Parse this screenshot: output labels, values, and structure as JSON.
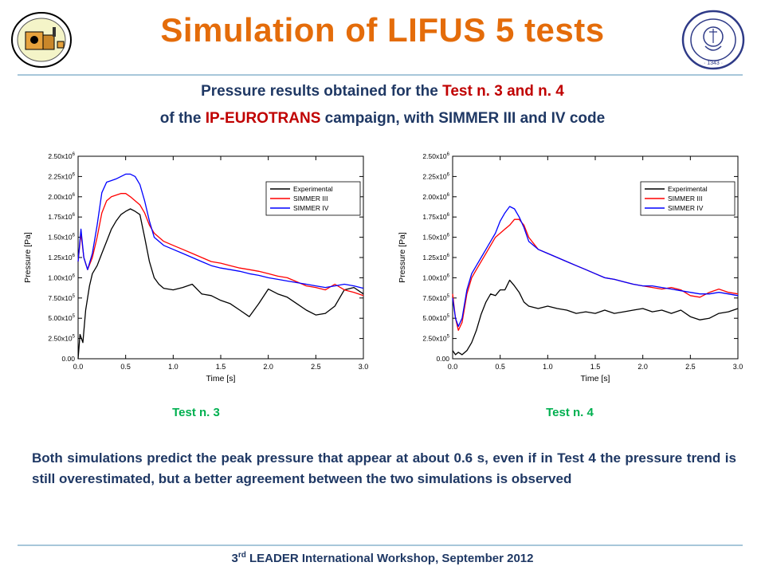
{
  "slide": {
    "title": "Simulation of LIFUS 5 tests",
    "subtitle_line1": {
      "pre": "Pressure results obtained for the ",
      "highlight": "Test n. 3 and n. 4",
      "post": ""
    },
    "subtitle_line2": {
      "pre": "of the ",
      "highlight": "IP-EUROTRANS",
      "post": " campaign, with SIMMER III and IV code"
    },
    "caption_left": "Test n. 3",
    "caption_right": "Test n. 4",
    "body_text": "Both simulations predict the peak pressure that appear at about 0.6 s, even if in Test 4 the pressure trend is still overestimated, but a better agreement between the two simulations is observed",
    "footer": {
      "sup": "rd",
      "pre": "3",
      "post": " LEADER International Workshop, September 2012"
    },
    "seal_text_right": "IN SUPREMÆ DIGNITATIS 1343",
    "accent_color": "#E46C0A",
    "text_color": "#1F3864",
    "highlight_color": "#C00000",
    "caption_color": "#00B050"
  },
  "chart_data": [
    {
      "type": "line",
      "xlabel": "Time [s]",
      "ylabel": "Pressure [Pa]",
      "xlim": [
        0,
        3
      ],
      "ylim": [
        0,
        2500000
      ],
      "x_ticks": [
        "0.0",
        "0.5",
        "1.0",
        "1.5",
        "2.0",
        "2.5",
        "3.0"
      ],
      "y_ticks": [
        {
          "m": "0.00",
          "e": ""
        },
        {
          "m": "2.50x10",
          "e": "5"
        },
        {
          "m": "5.00x10",
          "e": "5"
        },
        {
          "m": "7.50x10",
          "e": "5"
        },
        {
          "m": "1.00x10",
          "e": "6"
        },
        {
          "m": "1.25x10",
          "e": "6"
        },
        {
          "m": "1.50x10",
          "e": "6"
        },
        {
          "m": "1.75x10",
          "e": "6"
        },
        {
          "m": "2.00x10",
          "e": "6"
        },
        {
          "m": "2.25x10",
          "e": "6"
        },
        {
          "m": "2.50x10",
          "e": "6"
        }
      ],
      "legend_position": "top-right",
      "series": [
        {
          "name": "Experimental",
          "color": "#000000",
          "x": [
            0,
            0.02,
            0.05,
            0.08,
            0.12,
            0.15,
            0.2,
            0.25,
            0.3,
            0.35,
            0.4,
            0.45,
            0.5,
            0.55,
            0.6,
            0.65,
            0.7,
            0.75,
            0.8,
            0.85,
            0.9,
            1.0,
            1.1,
            1.2,
            1.3,
            1.4,
            1.5,
            1.6,
            1.7,
            1.8,
            1.9,
            2.0,
            2.1,
            2.2,
            2.3,
            2.4,
            2.5,
            2.6,
            2.7,
            2.8,
            2.9,
            3.0
          ],
          "y": [
            0,
            300000,
            200000,
            600000,
            900000,
            1050000,
            1150000,
            1300000,
            1450000,
            1600000,
            1700000,
            1780000,
            1820000,
            1850000,
            1820000,
            1780000,
            1500000,
            1200000,
            1000000,
            920000,
            870000,
            850000,
            880000,
            920000,
            800000,
            780000,
            720000,
            680000,
            600000,
            520000,
            680000,
            860000,
            800000,
            760000,
            680000,
            600000,
            540000,
            560000,
            650000,
            850000,
            880000,
            800000
          ]
        },
        {
          "name": "SIMMER III",
          "color": "#FF0000",
          "x": [
            0,
            0.03,
            0.06,
            0.1,
            0.15,
            0.2,
            0.25,
            0.3,
            0.35,
            0.4,
            0.45,
            0.5,
            0.55,
            0.6,
            0.65,
            0.7,
            0.75,
            0.8,
            0.9,
            1.0,
            1.1,
            1.2,
            1.3,
            1.4,
            1.5,
            1.6,
            1.7,
            1.8,
            1.9,
            2.0,
            2.1,
            2.2,
            2.3,
            2.4,
            2.5,
            2.6,
            2.7,
            2.8,
            2.9,
            3.0
          ],
          "y": [
            1200000,
            1550000,
            1250000,
            1100000,
            1250000,
            1500000,
            1800000,
            1950000,
            2000000,
            2020000,
            2040000,
            2040000,
            2000000,
            1950000,
            1900000,
            1800000,
            1650000,
            1550000,
            1450000,
            1400000,
            1350000,
            1300000,
            1250000,
            1200000,
            1180000,
            1150000,
            1120000,
            1100000,
            1080000,
            1050000,
            1020000,
            1000000,
            950000,
            900000,
            880000,
            850000,
            920000,
            850000,
            820000,
            780000
          ]
        },
        {
          "name": "SIMMER IV",
          "color": "#0000FF",
          "x": [
            0,
            0.03,
            0.06,
            0.1,
            0.15,
            0.2,
            0.25,
            0.3,
            0.35,
            0.4,
            0.45,
            0.5,
            0.55,
            0.6,
            0.65,
            0.7,
            0.75,
            0.8,
            0.9,
            1.0,
            1.1,
            1.2,
            1.3,
            1.4,
            1.5,
            1.6,
            1.7,
            1.8,
            1.9,
            2.0,
            2.1,
            2.2,
            2.3,
            2.4,
            2.5,
            2.6,
            2.7,
            2.8,
            2.9,
            3.0
          ],
          "y": [
            1200000,
            1600000,
            1250000,
            1100000,
            1300000,
            1650000,
            2050000,
            2180000,
            2200000,
            2220000,
            2250000,
            2280000,
            2280000,
            2250000,
            2150000,
            1950000,
            1700000,
            1500000,
            1400000,
            1350000,
            1300000,
            1250000,
            1200000,
            1150000,
            1120000,
            1100000,
            1080000,
            1050000,
            1030000,
            1000000,
            980000,
            960000,
            940000,
            920000,
            900000,
            880000,
            900000,
            920000,
            900000,
            870000
          ]
        }
      ]
    },
    {
      "type": "line",
      "xlabel": "Time [s]",
      "ylabel": "Pressure [Pa]",
      "xlim": [
        0,
        3
      ],
      "ylim": [
        0,
        2500000
      ],
      "x_ticks": [
        "0.0",
        "0.5",
        "1.0",
        "1.5",
        "2.0",
        "2.5",
        "3.0"
      ],
      "y_ticks": [
        {
          "m": "0.00",
          "e": ""
        },
        {
          "m": "2.50x10",
          "e": "5"
        },
        {
          "m": "5.00x10",
          "e": "5"
        },
        {
          "m": "7.50x10",
          "e": "5"
        },
        {
          "m": "1.00x10",
          "e": "6"
        },
        {
          "m": "1.25x10",
          "e": "6"
        },
        {
          "m": "1.50x10",
          "e": "6"
        },
        {
          "m": "1.75x10",
          "e": "6"
        },
        {
          "m": "2.00x10",
          "e": "6"
        },
        {
          "m": "2.25x10",
          "e": "6"
        },
        {
          "m": "2.50x10",
          "e": "6"
        }
      ],
      "legend_position": "top-right",
      "series": [
        {
          "name": "Experimental",
          "color": "#000000",
          "x": [
            0,
            0.03,
            0.06,
            0.1,
            0.15,
            0.2,
            0.25,
            0.3,
            0.35,
            0.4,
            0.45,
            0.5,
            0.55,
            0.6,
            0.65,
            0.7,
            0.75,
            0.8,
            0.9,
            1.0,
            1.1,
            1.2,
            1.3,
            1.4,
            1.5,
            1.6,
            1.7,
            1.8,
            1.9,
            2.0,
            2.1,
            2.2,
            2.3,
            2.4,
            2.5,
            2.6,
            2.7,
            2.8,
            2.9,
            3.0
          ],
          "y": [
            100000,
            50000,
            80000,
            50000,
            100000,
            200000,
            350000,
            550000,
            700000,
            800000,
            780000,
            850000,
            850000,
            970000,
            900000,
            820000,
            700000,
            650000,
            620000,
            650000,
            620000,
            600000,
            560000,
            580000,
            560000,
            600000,
            560000,
            580000,
            600000,
            620000,
            580000,
            600000,
            560000,
            600000,
            520000,
            480000,
            500000,
            560000,
            580000,
            620000
          ]
        },
        {
          "name": "SIMMER III",
          "color": "#FF0000",
          "x": [
            0,
            0.03,
            0.06,
            0.1,
            0.15,
            0.2,
            0.25,
            0.3,
            0.35,
            0.4,
            0.45,
            0.5,
            0.55,
            0.6,
            0.65,
            0.7,
            0.75,
            0.8,
            0.9,
            1.0,
            1.1,
            1.2,
            1.3,
            1.4,
            1.5,
            1.6,
            1.7,
            1.8,
            1.9,
            2.0,
            2.1,
            2.2,
            2.3,
            2.4,
            2.5,
            2.6,
            2.7,
            2.8,
            2.9,
            3.0
          ],
          "y": [
            800000,
            500000,
            350000,
            450000,
            800000,
            1000000,
            1100000,
            1200000,
            1300000,
            1400000,
            1500000,
            1550000,
            1600000,
            1650000,
            1720000,
            1720000,
            1650000,
            1500000,
            1350000,
            1300000,
            1250000,
            1200000,
            1150000,
            1100000,
            1050000,
            1000000,
            980000,
            950000,
            920000,
            900000,
            880000,
            860000,
            880000,
            850000,
            780000,
            760000,
            820000,
            860000,
            820000,
            800000
          ]
        },
        {
          "name": "SIMMER IV",
          "color": "#0000FF",
          "x": [
            0,
            0.03,
            0.06,
            0.1,
            0.15,
            0.2,
            0.25,
            0.3,
            0.35,
            0.4,
            0.45,
            0.5,
            0.55,
            0.6,
            0.65,
            0.7,
            0.75,
            0.8,
            0.9,
            1.0,
            1.1,
            1.2,
            1.3,
            1.4,
            1.5,
            1.6,
            1.7,
            1.8,
            1.9,
            2.0,
            2.1,
            2.2,
            2.3,
            2.4,
            2.5,
            2.6,
            2.7,
            2.8,
            2.9,
            3.0
          ],
          "y": [
            750000,
            500000,
            400000,
            500000,
            850000,
            1050000,
            1150000,
            1250000,
            1350000,
            1450000,
            1550000,
            1700000,
            1800000,
            1880000,
            1850000,
            1750000,
            1620000,
            1450000,
            1350000,
            1300000,
            1250000,
            1200000,
            1150000,
            1100000,
            1050000,
            1000000,
            980000,
            950000,
            920000,
            900000,
            900000,
            880000,
            860000,
            840000,
            820000,
            800000,
            800000,
            820000,
            800000,
            780000
          ]
        }
      ]
    }
  ]
}
